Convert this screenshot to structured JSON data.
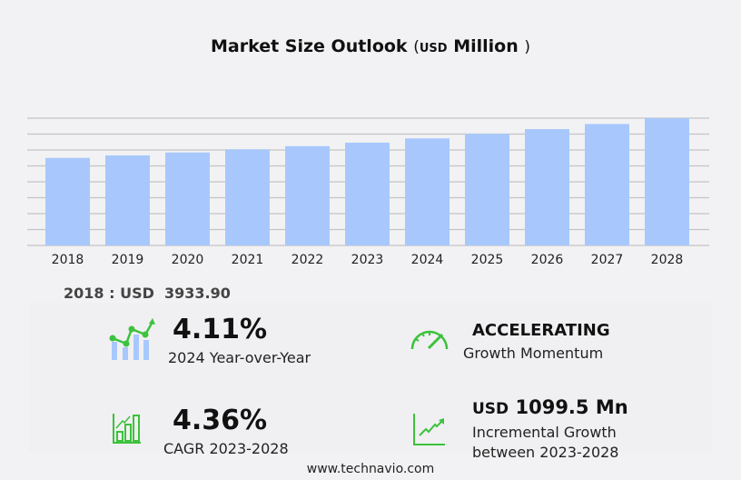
{
  "title": {
    "main": "Market Size Outlook",
    "open": "(",
    "unit": "USD",
    "unit_word": "Million",
    "close": ")"
  },
  "chart_data": {
    "type": "bar",
    "title": "Market Size Outlook (USD Million)",
    "categories": [
      "2018",
      "2019",
      "2020",
      "2021",
      "2022",
      "2023",
      "2024",
      "2025",
      "2026",
      "2027",
      "2028"
    ],
    "values": [
      3933.9,
      4050,
      4180,
      4320,
      4465,
      4622,
      4812,
      5020,
      5230,
      5460,
      5721
    ],
    "ylim": [
      0,
      5721
    ],
    "grid": true,
    "gridlines": 8,
    "bar_color": "#a8c8fd"
  },
  "base_value": {
    "label": "2018 : USD",
    "value": "3933.90"
  },
  "stats": {
    "yoy": {
      "value": "4.11%",
      "label": "2024 Year-over-Year"
    },
    "momentum": {
      "value": "ACCELERATING",
      "label": "Growth Momentum"
    },
    "cagr": {
      "value": "4.36%",
      "label": "CAGR 2023-2028"
    },
    "incremental": {
      "prefix": "USD",
      "value": "1099.5 Mn",
      "label1": "Incremental Growth",
      "label2": "between 2023-2028"
    }
  },
  "icon_color": "#3cc23c",
  "footer": "www.technavio.com"
}
